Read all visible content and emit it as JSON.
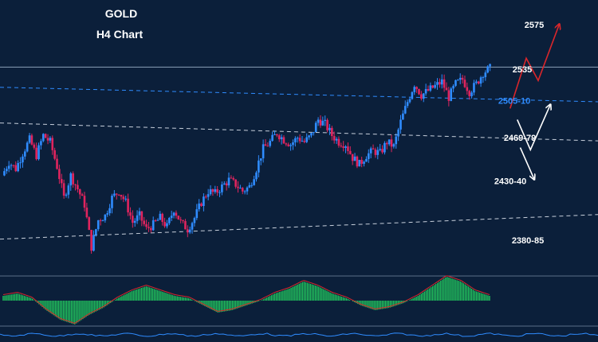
{
  "chart_data": {
    "type": "candlestick",
    "title": "GOLD",
    "subtitle": "H4 Chart",
    "price_range": [
      2355,
      2590
    ],
    "levels": [
      {
        "label": "2575",
        "price": 2575,
        "color": "#ffffff"
      },
      {
        "label": "2535",
        "price": 2535,
        "color": "#ffffff"
      },
      {
        "label": "2505-10",
        "price": 2507,
        "color": "#2f8cff"
      },
      {
        "label": "2469-79",
        "price": 2474,
        "color": "#ffffff"
      },
      {
        "label": "2430-40",
        "price": 2435,
        "color": "#ffffff"
      },
      {
        "label": "2380-85",
        "price": 2382,
        "color": "#ffffff"
      }
    ],
    "trendlines": [
      {
        "name": "blue-channel",
        "from": [
          0,
          2519
        ],
        "to": [
          1,
          2506
        ],
        "style": "dashed",
        "color": "#2f8cff"
      },
      {
        "name": "white-upper",
        "from": [
          0,
          2487
        ],
        "to": [
          1,
          2471
        ],
        "style": "dashed",
        "color": "#c8d0dc"
      },
      {
        "name": "white-lower",
        "from": [
          0,
          2383
        ],
        "to": [
          1,
          2405
        ],
        "style": "dashed",
        "color": "#c8d0dc"
      },
      {
        "name": "resistance",
        "from": [
          0,
          2537
        ],
        "to": [
          1,
          2537
        ],
        "style": "solid",
        "color": "#8aa0b8"
      }
    ],
    "candles_path": [
      2440,
      2452,
      2446,
      2460,
      2472,
      2458,
      2476,
      2470,
      2448,
      2420,
      2440,
      2428,
      2414,
      2376,
      2400,
      2404,
      2420,
      2426,
      2416,
      2398,
      2404,
      2392,
      2396,
      2402,
      2394,
      2410,
      2398,
      2392,
      2402,
      2416,
      2426,
      2424,
      2430,
      2436,
      2432,
      2426,
      2430,
      2446,
      2464,
      2470,
      2478,
      2472,
      2468,
      2474,
      2470,
      2476,
      2490,
      2486,
      2476,
      2470,
      2468,
      2456,
      2450,
      2458,
      2462,
      2460,
      2470,
      2466,
      2488,
      2506,
      2522,
      2512,
      2516,
      2520,
      2524,
      2510,
      2522,
      2526,
      2515,
      2522,
      2532,
      2536
    ],
    "forecast_paths": [
      {
        "color": "#d9262b",
        "points": [
          [
            0.853,
            2500
          ],
          [
            0.88,
            2545
          ],
          [
            0.9,
            2525
          ],
          [
            0.935,
            2575
          ]
        ]
      },
      {
        "color": "#ffffff",
        "points": [
          [
            0.865,
            2490
          ],
          [
            0.887,
            2463
          ],
          [
            0.92,
            2503
          ]
        ]
      },
      {
        "color": "#ffffff",
        "points": [
          [
            0.87,
            2465
          ],
          [
            0.893,
            2437
          ]
        ]
      }
    ],
    "oscillator": {
      "type": "histogram",
      "values": [
        2,
        3,
        1,
        -4,
        -8,
        -10,
        -6,
        -3,
        1,
        4,
        6,
        4,
        2,
        1,
        -2,
        -5,
        -4,
        -2,
        0,
        3,
        5,
        8,
        6,
        3,
        1,
        -2,
        -4,
        -3,
        -1,
        2,
        6,
        10,
        8,
        4,
        2
      ],
      "colors": {
        "up": "#22c55e",
        "line": "#d9262b"
      }
    }
  }
}
